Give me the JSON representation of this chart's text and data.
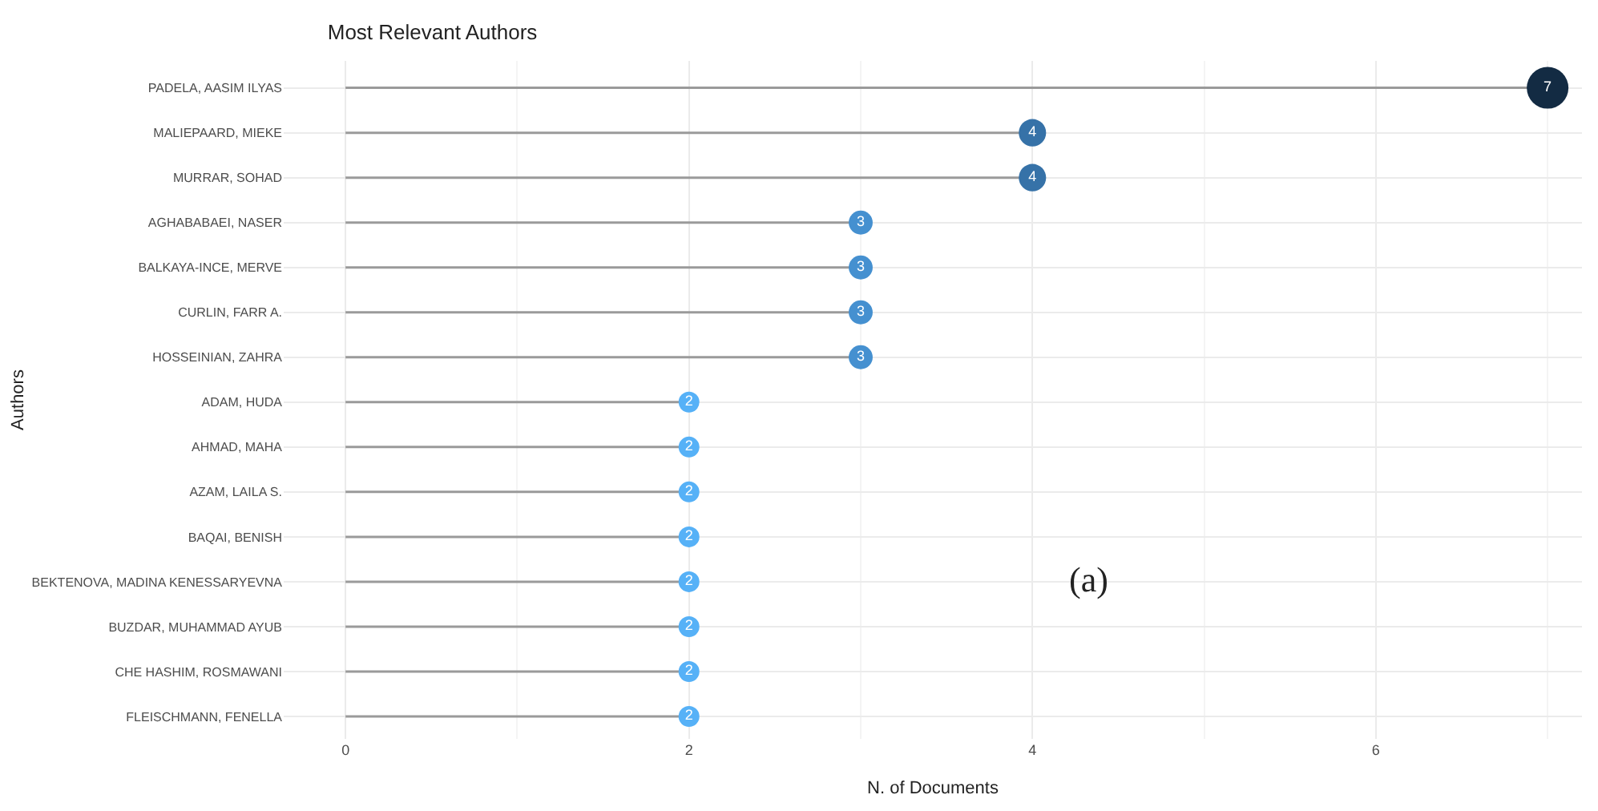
{
  "chart_data": {
    "type": "lollipop",
    "orientation": "horizontal",
    "title": "Most Relevant Authors",
    "xlabel": "N. of Documents",
    "ylabel": "Authors",
    "categories": [
      "PADELA, AASIM ILYAS",
      "MALIEPAARD, MIEKE",
      "MURRAR, SOHAD",
      "AGHABABAEI, NASER",
      "BALKAYA-INCE, MERVE",
      "CURLIN, FARR A.",
      "HOSSEINIAN, ZAHRA",
      "ADAM, HUDA",
      "AHMAD, MAHA",
      "AZAM, LAILA S.",
      "BAQAI, BENISH",
      "BEKTENOVA, MADINA KENESSARYEVNA",
      "BUZDAR, MUHAMMAD AYUB",
      "CHE HASHIM, ROSMAWANI",
      "FLEISCHMANN, FENELLA"
    ],
    "values": [
      7,
      4,
      4,
      3,
      3,
      3,
      3,
      2,
      2,
      2,
      2,
      2,
      2,
      2,
      2
    ],
    "colors": [
      "#132b43",
      "#3672a8",
      "#3672a8",
      "#4590d0",
      "#4590d0",
      "#4590d0",
      "#4590d0",
      "#56b1f7",
      "#56b1f7",
      "#56b1f7",
      "#56b1f7",
      "#56b1f7",
      "#56b1f7",
      "#56b1f7",
      "#56b1f7"
    ],
    "sizes": [
      1,
      0.43,
      0.43,
      0.33,
      0.33,
      0.33,
      0.33,
      0.25,
      0.25,
      0.25,
      0.25,
      0.25,
      0.25,
      0.25,
      0.25
    ],
    "xlim": [
      -0.36,
      7.2
    ],
    "xticks": [
      0,
      2,
      4,
      6
    ],
    "grid": true,
    "data_labels": true,
    "legend": false,
    "marker": "circle",
    "annotations": [
      "(a)"
    ]
  }
}
